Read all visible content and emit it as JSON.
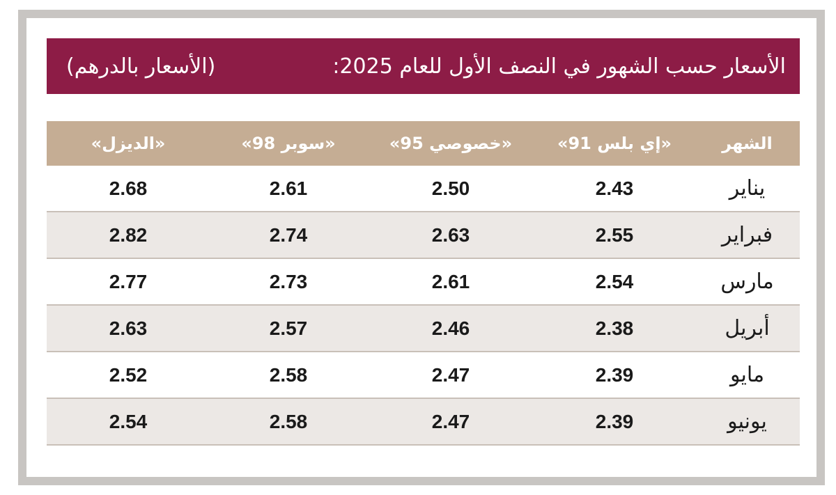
{
  "title": "الأسعار حسب الشهور في النصف الأول للعام 2025:",
  "subtitle": "(الأسعار بالدرهم)",
  "columns": {
    "month": "الشهر",
    "eplus91": "«إي بلس 91»",
    "special95": "«خصوصي 95»",
    "super98": "«سوبر 98»",
    "diesel": "«الديزل»"
  },
  "rows": [
    {
      "month": "يناير",
      "eplus91": "2.43",
      "special95": "2.50",
      "super98": "2.61",
      "diesel": "2.68"
    },
    {
      "month": "فبراير",
      "eplus91": "2.55",
      "special95": "2.63",
      "super98": "2.74",
      "diesel": "2.82"
    },
    {
      "month": "مارس",
      "eplus91": "2.54",
      "special95": "2.61",
      "super98": "2.73",
      "diesel": "2.77"
    },
    {
      "month": "أبريل",
      "eplus91": "2.38",
      "special95": "2.46",
      "super98": "2.57",
      "diesel": "2.63"
    },
    {
      "month": "مايو",
      "eplus91": "2.39",
      "special95": "2.47",
      "super98": "2.58",
      "diesel": "2.52"
    },
    {
      "month": "يونيو",
      "eplus91": "2.39",
      "special95": "2.47",
      "super98": "2.58",
      "diesel": "2.54"
    }
  ],
  "colors": {
    "title_bg": "#8d1c46",
    "header_bg": "#c5ad94",
    "stripe_bg": "#ece8e5",
    "frame": "#c8c5c2"
  }
}
